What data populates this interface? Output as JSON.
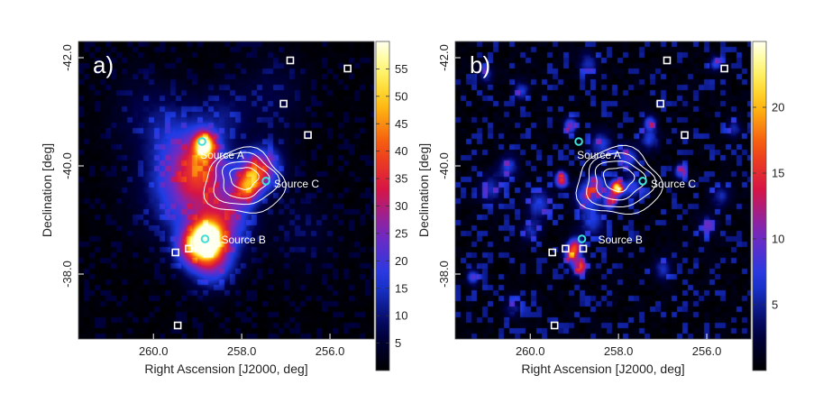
{
  "chart_data": [
    {
      "type": "heatmap",
      "panel_label": "a)",
      "xlabel": "Right Ascension [J2000, deg]",
      "ylabel": "Declination [deg]",
      "xlim": [
        261.7,
        255.0
      ],
      "ylim": [
        42.3,
        36.8
      ],
      "x_ticks": [
        {
          "value": 260.0,
          "label": "260.0"
        },
        {
          "value": 258.0,
          "label": "258.0"
        },
        {
          "value": 256.0,
          "label": "256.0"
        }
      ],
      "y_ticks": [
        {
          "value": 38.0,
          "label": "-38.0"
        },
        {
          "value": 40.0,
          "label": "-40.0"
        },
        {
          "value": 42.0,
          "label": "-42.0"
        }
      ],
      "colorbar_range": [
        0,
        60
      ],
      "colorbar_ticks": [
        {
          "value": 5,
          "label": "5"
        },
        {
          "value": 10,
          "label": "10"
        },
        {
          "value": 15,
          "label": "15"
        },
        {
          "value": 20,
          "label": "20"
        },
        {
          "value": 25,
          "label": "25"
        },
        {
          "value": 30,
          "label": "30"
        },
        {
          "value": 35,
          "label": "35"
        },
        {
          "value": 40,
          "label": "40"
        },
        {
          "value": 45,
          "label": "45"
        },
        {
          "value": 50,
          "label": "50"
        },
        {
          "value": 55,
          "label": "55"
        }
      ],
      "blobs": [
        {
          "ra": 258.8,
          "dec": 38.65,
          "amp": 56,
          "s": 0.22
        },
        {
          "ra": 258.7,
          "dec": 38.3,
          "amp": 26,
          "s": 0.35
        },
        {
          "ra": 259.2,
          "dec": 38.5,
          "amp": 22,
          "s": 0.25
        },
        {
          "ra": 258.6,
          "dec": 39.2,
          "amp": 18,
          "s": 0.55
        },
        {
          "ra": 257.9,
          "dec": 39.6,
          "amp": 28,
          "s": 0.2
        },
        {
          "ra": 257.7,
          "dec": 39.9,
          "amp": 26,
          "s": 0.25
        },
        {
          "ra": 257.4,
          "dec": 40.0,
          "amp": 14,
          "s": 0.3
        },
        {
          "ra": 258.85,
          "dec": 40.4,
          "amp": 44,
          "s": 0.16
        },
        {
          "ra": 258.9,
          "dec": 40.1,
          "amp": 16,
          "s": 0.35
        },
        {
          "ra": 259.2,
          "dec": 39.8,
          "amp": 14,
          "s": 0.5
        },
        {
          "ra": 259.6,
          "dec": 39.5,
          "amp": 9,
          "s": 0.6
        },
        {
          "ra": 259.5,
          "dec": 40.6,
          "amp": 9,
          "s": 0.5
        },
        {
          "ra": 258.4,
          "dec": 40.9,
          "amp": 8,
          "s": 0.4
        },
        {
          "ra": 258.3,
          "dec": 39.0,
          "amp": 10,
          "s": 0.35
        },
        {
          "ra": 257.3,
          "dec": 41.3,
          "amp": 6,
          "s": 0.5
        },
        {
          "ra": 260.3,
          "dec": 41.0,
          "amp": 5,
          "s": 0.5
        },
        {
          "ra": 256.6,
          "dec": 38.8,
          "amp": 4,
          "s": 0.5
        }
      ],
      "contours": [
        {
          "ra": 257.95,
          "dec": 39.7,
          "rx": 0.9,
          "ry": 0.6
        },
        {
          "ra": 257.95,
          "dec": 39.75,
          "rx": 0.72,
          "ry": 0.48
        },
        {
          "ra": 257.95,
          "dec": 39.75,
          "rx": 0.52,
          "ry": 0.34
        },
        {
          "ra": 257.95,
          "dec": 39.78,
          "rx": 0.32,
          "ry": 0.2
        }
      ],
      "sources": [
        {
          "label": "Source B",
          "ra": 258.83,
          "dec": 38.65
        },
        {
          "label": "Source C",
          "ra": 257.45,
          "dec": 39.72
        },
        {
          "label": "Source A",
          "ra": 258.9,
          "dec": 40.45
        }
      ],
      "squares": [
        {
          "ra": 259.45,
          "dec": 37.05
        },
        {
          "ra": 259.5,
          "dec": 38.4
        },
        {
          "ra": 259.2,
          "dec": 38.47
        },
        {
          "ra": 258.8,
          "dec": 38.47
        },
        {
          "ra": 256.5,
          "dec": 40.57
        },
        {
          "ra": 257.05,
          "dec": 41.15
        },
        {
          "ra": 256.9,
          "dec": 41.95
        },
        {
          "ra": 255.6,
          "dec": 41.8
        }
      ]
    },
    {
      "type": "heatmap",
      "panel_label": "b)",
      "xlabel": "Right Ascension [J2000, deg]",
      "ylabel": "Declination [deg]",
      "xlim": [
        261.7,
        255.0
      ],
      "ylim": [
        42.3,
        36.8
      ],
      "x_ticks": [
        {
          "value": 260.0,
          "label": "260.0"
        },
        {
          "value": 258.0,
          "label": "258.0"
        },
        {
          "value": 256.0,
          "label": "256.0"
        }
      ],
      "y_ticks": [
        {
          "value": 38.0,
          "label": "-38.0"
        },
        {
          "value": 40.0,
          "label": "-40.0"
        },
        {
          "value": 42.0,
          "label": "-42.0"
        }
      ],
      "colorbar_range": [
        0,
        25
      ],
      "colorbar_ticks": [
        {
          "value": 5,
          "label": "5"
        },
        {
          "value": 10,
          "label": "10"
        },
        {
          "value": 15,
          "label": "15"
        },
        {
          "value": 20,
          "label": "20"
        }
      ],
      "blobs": [
        {
          "ra": 258.05,
          "dec": 39.6,
          "amp": 22,
          "s": 0.1
        },
        {
          "ra": 258.2,
          "dec": 39.35,
          "amp": 12,
          "s": 0.1
        },
        {
          "ra": 259.3,
          "dec": 39.75,
          "amp": 15,
          "s": 0.1
        },
        {
          "ra": 259.0,
          "dec": 38.5,
          "amp": 14,
          "s": 0.12
        },
        {
          "ra": 258.9,
          "dec": 38.15,
          "amp": 12,
          "s": 0.12
        },
        {
          "ra": 259.1,
          "dec": 38.35,
          "amp": 9,
          "s": 0.1
        },
        {
          "ra": 258.5,
          "dec": 39.65,
          "amp": 9,
          "s": 0.15
        },
        {
          "ra": 258.75,
          "dec": 39.45,
          "amp": 8,
          "s": 0.18
        },
        {
          "ra": 257.8,
          "dec": 40.15,
          "amp": 8,
          "s": 0.15
        },
        {
          "ra": 257.7,
          "dec": 39.6,
          "amp": 7,
          "s": 0.15
        },
        {
          "ra": 259.8,
          "dec": 39.3,
          "amp": 6,
          "s": 0.2
        },
        {
          "ra": 258.4,
          "dec": 40.4,
          "amp": 6,
          "s": 0.18
        },
        {
          "ra": 260.5,
          "dec": 40.0,
          "amp": 6,
          "s": 0.15
        },
        {
          "ra": 259.1,
          "dec": 40.75,
          "amp": 10,
          "s": 0.1
        },
        {
          "ra": 257.3,
          "dec": 40.5,
          "amp": 6,
          "s": 0.15
        },
        {
          "ra": 257.3,
          "dec": 40.8,
          "amp": 8,
          "s": 0.1
        },
        {
          "ra": 258.6,
          "dec": 39.0,
          "amp": 6,
          "s": 0.2
        },
        {
          "ra": 261.3,
          "dec": 37.95,
          "amp": 8,
          "s": 0.1
        },
        {
          "ra": 256.6,
          "dec": 39.9,
          "amp": 8,
          "s": 0.1
        },
        {
          "ra": 260.9,
          "dec": 39.6,
          "amp": 5,
          "s": 0.2
        },
        {
          "ra": 256.0,
          "dec": 38.9,
          "amp": 5,
          "s": 0.15
        },
        {
          "ra": 255.7,
          "dec": 39.45,
          "amp": 5,
          "s": 0.15
        },
        {
          "ra": 255.8,
          "dec": 41.9,
          "amp": 7,
          "s": 0.1
        },
        {
          "ra": 258.7,
          "dec": 41.9,
          "amp": 5,
          "s": 0.15
        },
        {
          "ra": 260.2,
          "dec": 41.4,
          "amp": 6,
          "s": 0.12
        },
        {
          "ra": 260.0,
          "dec": 38.8,
          "amp": 5,
          "s": 0.15
        },
        {
          "ra": 255.4,
          "dec": 40.7,
          "amp": 5,
          "s": 0.12
        },
        {
          "ra": 260.4,
          "dec": 37.4,
          "amp": 4,
          "s": 0.15
        },
        {
          "ra": 257.0,
          "dec": 38.1,
          "amp": 5,
          "s": 0.15
        },
        {
          "ra": 261.0,
          "dec": 41.7,
          "amp": 5,
          "s": 0.12
        }
      ],
      "contours": [
        {
          "ra": 258.0,
          "dec": 39.7,
          "rx": 0.95,
          "ry": 0.62
        },
        {
          "ra": 258.0,
          "dec": 39.72,
          "rx": 0.76,
          "ry": 0.5
        },
        {
          "ra": 258.0,
          "dec": 39.74,
          "rx": 0.56,
          "ry": 0.36
        },
        {
          "ra": 258.0,
          "dec": 39.76,
          "rx": 0.34,
          "ry": 0.22
        }
      ],
      "sources": [
        {
          "label": "Source B",
          "ra": 258.83,
          "dec": 38.65
        },
        {
          "label": "Source C",
          "ra": 257.45,
          "dec": 39.72
        },
        {
          "label": "Source A",
          "ra": 258.9,
          "dec": 40.45
        }
      ],
      "squares": [
        {
          "ra": 259.45,
          "dec": 37.05
        },
        {
          "ra": 259.5,
          "dec": 38.4
        },
        {
          "ra": 259.2,
          "dec": 38.47
        },
        {
          "ra": 258.8,
          "dec": 38.47
        },
        {
          "ra": 256.5,
          "dec": 40.57
        },
        {
          "ra": 257.05,
          "dec": 41.15
        },
        {
          "ra": 256.9,
          "dec": 41.95
        },
        {
          "ra": 255.6,
          "dec": 41.8
        }
      ]
    }
  ]
}
